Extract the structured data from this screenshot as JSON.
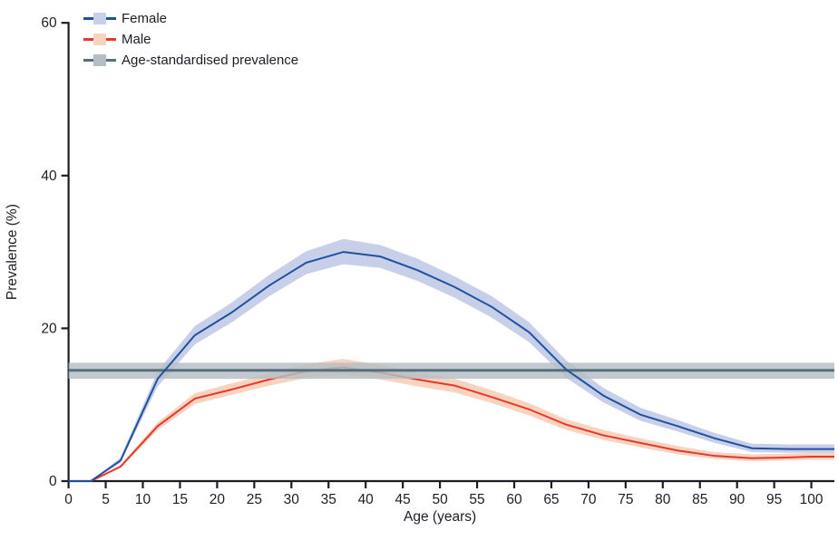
{
  "figure": {
    "background": "#ffffff",
    "text_color": "#1d1d26",
    "axis_color": "#1d1d26"
  },
  "x_axis": {
    "label": "Age (years)",
    "ticks": [
      0,
      5,
      10,
      15,
      20,
      25,
      30,
      35,
      40,
      45,
      50,
      55,
      60,
      65,
      70,
      75,
      80,
      85,
      90,
      95,
      100
    ]
  },
  "y_axis": {
    "label": "Prevalence (%)",
    "ticks": [
      0,
      20,
      40,
      60
    ]
  },
  "chart_data": {
    "type": "line",
    "title": "",
    "xlabel": "Age (years)",
    "ylabel": "Prevalence (%)",
    "xlim": [
      0,
      100
    ],
    "ylim": [
      0,
      60
    ],
    "grid": false,
    "legend_position": "top-left-inside",
    "x": [
      0,
      3,
      7,
      12,
      17,
      22,
      27,
      32,
      37,
      42,
      47,
      52,
      57,
      62,
      67,
      72,
      77,
      82,
      87,
      92,
      97,
      100
    ],
    "series": [
      {
        "name": "Female",
        "type": "line-with-band",
        "color": "#1f519e",
        "band_color": "#c8d0e9",
        "values": [
          0,
          0,
          2.7,
          13.4,
          19.1,
          22.1,
          25.6,
          28.6,
          30.0,
          29.4,
          27.6,
          25.4,
          22.8,
          19.5,
          14.6,
          11.2,
          8.7,
          7.2,
          5.6,
          4.3,
          4.2,
          4.2
        ],
        "lo": [
          0,
          0,
          2.4,
          12.4,
          17.9,
          20.8,
          24.2,
          27.1,
          28.4,
          27.9,
          26.2,
          24.0,
          21.4,
          18.2,
          13.5,
          10.3,
          7.9,
          6.5,
          5.0,
          3.8,
          3.7,
          3.7
        ],
        "hi": [
          0,
          0,
          3.1,
          14.4,
          20.3,
          23.4,
          27.0,
          30.1,
          31.7,
          30.9,
          29.1,
          26.8,
          24.2,
          20.8,
          15.8,
          12.2,
          9.6,
          8.0,
          6.3,
          4.9,
          4.8,
          4.8
        ]
      },
      {
        "name": "Male",
        "type": "line-with-band",
        "color": "#e8382a",
        "band_color": "#f8d3bf",
        "values": [
          0,
          0,
          1.9,
          7.2,
          10.8,
          12.0,
          13.3,
          14.4,
          14.9,
          14.2,
          13.3,
          12.5,
          11.0,
          9.4,
          7.4,
          6.0,
          5.0,
          4.0,
          3.3,
          3.0,
          3.1,
          3.2
        ],
        "lo": [
          0,
          0,
          1.7,
          6.7,
          10.1,
          11.3,
          12.5,
          13.5,
          13.9,
          13.3,
          12.4,
          11.6,
          10.2,
          8.6,
          6.7,
          5.4,
          4.4,
          3.5,
          2.9,
          2.6,
          2.7,
          2.8
        ],
        "hi": [
          0,
          0,
          2.1,
          7.7,
          11.5,
          12.8,
          14.1,
          15.3,
          16.0,
          15.2,
          14.2,
          13.4,
          11.9,
          10.2,
          8.1,
          6.7,
          5.6,
          4.6,
          3.8,
          3.5,
          3.6,
          3.7
        ]
      },
      {
        "name": "Age-standardised prevalence",
        "type": "hline-with-band",
        "color": "#566f7d",
        "band_color": "#b5bec4",
        "value": 14.5,
        "lo": 13.4,
        "hi": 15.5
      }
    ]
  }
}
